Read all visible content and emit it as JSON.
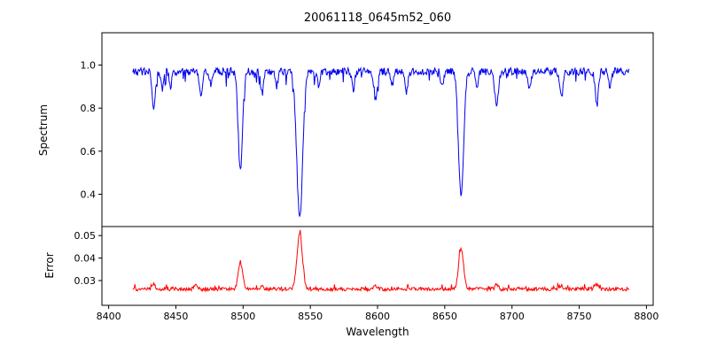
{
  "chart_data": {
    "type": "line",
    "title": "20061118_0645m52_060",
    "xlabel": "Wavelength",
    "xlim": [
      8395,
      8805
    ],
    "x_ticks": [
      8400,
      8450,
      8500,
      8550,
      8600,
      8650,
      8700,
      8750,
      8800
    ],
    "x_data_range": [
      8418,
      8787
    ],
    "sample_step": 0.5,
    "panels": [
      {
        "name": "spectrum",
        "ylabel": "Spectrum",
        "color": "#0000ee",
        "ylim": [
          0.25,
          1.15
        ],
        "y_ticks": [
          "0.4",
          "0.6",
          "0.8",
          "1.0"
        ],
        "continuum": 0.97,
        "noise_amplitude": 0.018,
        "absorption_lines": [
          {
            "center": 8433.5,
            "depth": 0.19,
            "width": 1.1
          },
          {
            "center": 8440.0,
            "depth": 0.08,
            "width": 1.0
          },
          {
            "center": 8446.0,
            "depth": 0.07,
            "width": 1.0
          },
          {
            "center": 8468.5,
            "depth": 0.11,
            "width": 1.2
          },
          {
            "center": 8476.0,
            "depth": 0.06,
            "width": 1.0
          },
          {
            "center": 8498.0,
            "depth": 0.465,
            "width": 1.6
          },
          {
            "center": 8514.2,
            "depth": 0.1,
            "width": 1.1
          },
          {
            "center": 8525.0,
            "depth": 0.07,
            "width": 1.0
          },
          {
            "center": 8542.1,
            "depth": 0.68,
            "width": 2.2
          },
          {
            "center": 8556.0,
            "depth": 0.06,
            "width": 1.0
          },
          {
            "center": 8582.0,
            "depth": 0.08,
            "width": 1.1
          },
          {
            "center": 8598.5,
            "depth": 0.12,
            "width": 1.2
          },
          {
            "center": 8611.0,
            "depth": 0.06,
            "width": 1.0
          },
          {
            "center": 8621.5,
            "depth": 0.1,
            "width": 1.1
          },
          {
            "center": 8648.0,
            "depth": 0.07,
            "width": 1.0
          },
          {
            "center": 8662.1,
            "depth": 0.58,
            "width": 1.9
          },
          {
            "center": 8674.0,
            "depth": 0.08,
            "width": 1.0
          },
          {
            "center": 8688.5,
            "depth": 0.16,
            "width": 1.3
          },
          {
            "center": 8713.0,
            "depth": 0.08,
            "width": 1.1
          },
          {
            "center": 8736.5,
            "depth": 0.11,
            "width": 1.2
          },
          {
            "center": 8763.0,
            "depth": 0.15,
            "width": 1.2
          },
          {
            "center": 8773.0,
            "depth": 0.07,
            "width": 1.0
          }
        ]
      },
      {
        "name": "error",
        "ylabel": "Error",
        "color": "#ff0000",
        "ylim": [
          0.019,
          0.054
        ],
        "y_ticks": [
          "0.03",
          "0.04",
          "0.05"
        ],
        "baseline": 0.0262,
        "noise_amplitude": 0.0008,
        "peaks": [
          {
            "center": 8433.5,
            "height": 0.002,
            "width": 1.2
          },
          {
            "center": 8465.0,
            "height": 0.0018,
            "width": 1.2
          },
          {
            "center": 8498.0,
            "height": 0.0115,
            "width": 1.6
          },
          {
            "center": 8514.2,
            "height": 0.001,
            "width": 1.2
          },
          {
            "center": 8542.1,
            "height": 0.025,
            "width": 2.0
          },
          {
            "center": 8598.5,
            "height": 0.0015,
            "width": 1.2
          },
          {
            "center": 8662.1,
            "height": 0.018,
            "width": 1.8
          },
          {
            "center": 8688.5,
            "height": 0.002,
            "width": 1.2
          },
          {
            "center": 8736.5,
            "height": 0.0015,
            "width": 1.2
          },
          {
            "center": 8763.0,
            "height": 0.002,
            "width": 1.2
          }
        ]
      }
    ]
  }
}
